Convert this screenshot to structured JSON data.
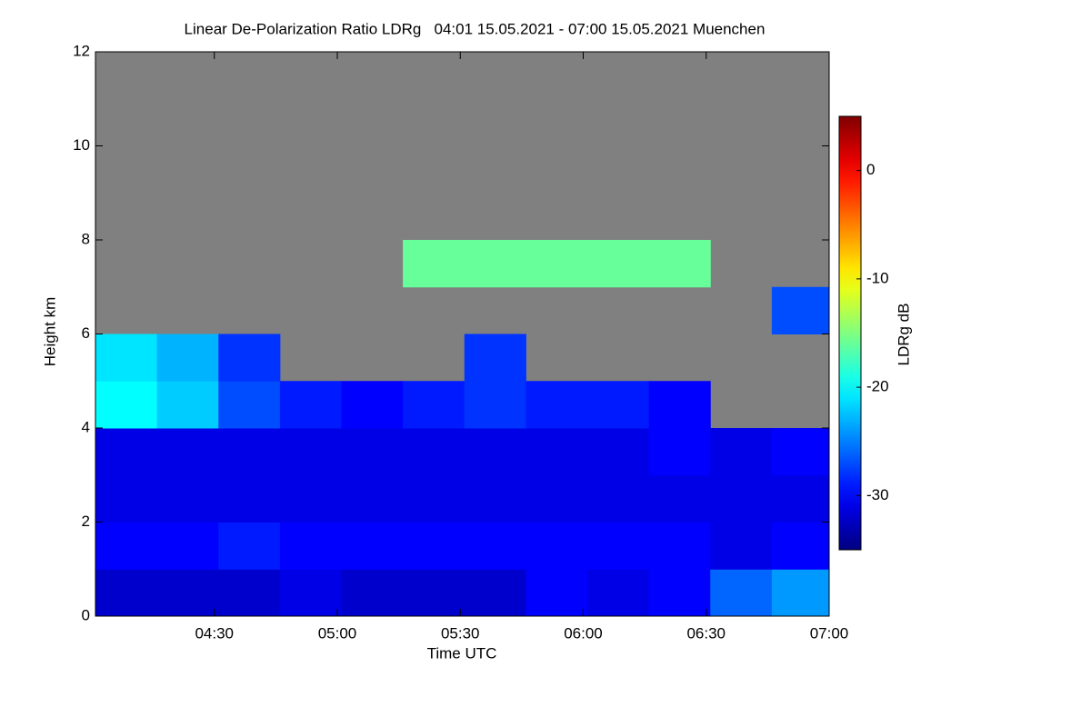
{
  "chart_data": {
    "type": "heatmap",
    "title": "Linear De-Polarization Ratio LDRg   04:01 15.05.2021 - 07:00 15.05.2021 Muenchen",
    "x_label": "Time UTC",
    "y_label": "Height km",
    "colorbar_label": "LDRg dB",
    "colormap": "jet",
    "missing_color": "#808080",
    "xlim": [
      241,
      420
    ],
    "xticks": [
      {
        "value": 270,
        "label": "04:30"
      },
      {
        "value": 300,
        "label": "05:00"
      },
      {
        "value": 330,
        "label": "05:30"
      },
      {
        "value": 360,
        "label": "06:00"
      },
      {
        "value": 390,
        "label": "06:30"
      },
      {
        "value": 420,
        "label": "07:00"
      }
    ],
    "ylim": [
      0,
      12
    ],
    "yticks": [
      0,
      2,
      4,
      6,
      8,
      10,
      12
    ],
    "zlim": [
      -35,
      5
    ],
    "zticks": [
      -30,
      -20,
      -10,
      0
    ],
    "x": [
      241,
      256,
      271,
      286,
      301,
      316,
      331,
      346,
      361,
      376,
      391,
      406
    ],
    "y": [
      0,
      1,
      2,
      3,
      4,
      5,
      6,
      7,
      8,
      9,
      10,
      11
    ],
    "values": [
      [
        -32,
        -32,
        -32,
        -31,
        -32,
        -32,
        -32,
        -30,
        -31,
        -30,
        -26,
        -24
      ],
      [
        -30,
        -30,
        -29,
        -30,
        -30,
        -30,
        -30,
        -30,
        -30,
        -30,
        -31,
        -30
      ],
      [
        -31,
        -31,
        -31,
        -31,
        -31,
        -31,
        -31,
        -31,
        -31,
        -31,
        -31,
        -31
      ],
      [
        -31,
        -31,
        -31,
        -31,
        -31,
        -31,
        -31,
        -31,
        -31,
        -30,
        -31,
        -30
      ],
      [
        -20,
        -22,
        -27,
        -29,
        -30,
        -29,
        -28,
        -29,
        -29,
        -30,
        null,
        null
      ],
      [
        -21,
        -23,
        -28,
        null,
        null,
        null,
        -28,
        null,
        null,
        null,
        null,
        null
      ],
      [
        null,
        null,
        null,
        null,
        null,
        null,
        null,
        null,
        null,
        null,
        null,
        -27
      ],
      [
        null,
        null,
        null,
        null,
        null,
        -16,
        -16,
        -16,
        -16,
        -16,
        null,
        null
      ],
      [
        null,
        null,
        null,
        null,
        null,
        null,
        null,
        null,
        null,
        null,
        null,
        null
      ],
      [
        null,
        null,
        null,
        null,
        null,
        null,
        null,
        null,
        null,
        null,
        null,
        null
      ],
      [
        null,
        null,
        null,
        null,
        null,
        null,
        null,
        null,
        null,
        null,
        null,
        null
      ],
      [
        null,
        null,
        null,
        null,
        null,
        null,
        null,
        null,
        null,
        null,
        null,
        null
      ]
    ]
  }
}
